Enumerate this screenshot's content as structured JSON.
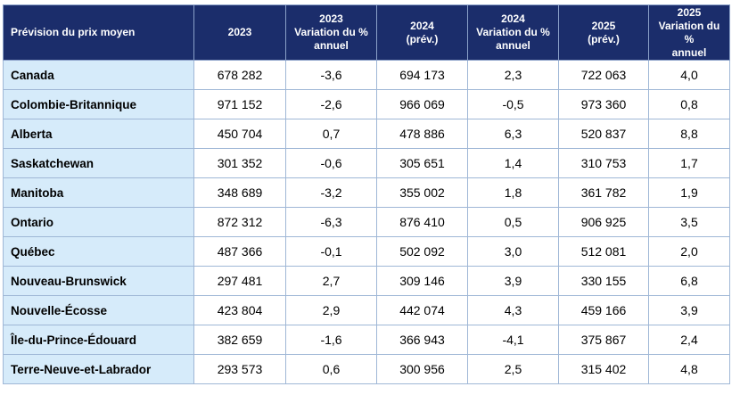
{
  "table": {
    "headers": [
      [
        "Prévision du prix moyen"
      ],
      [
        "2023"
      ],
      [
        "2023",
        "Variation du %",
        "annuel"
      ],
      [
        "2024",
        "(prév.)"
      ],
      [
        "2024",
        "Variation du %",
        "annuel"
      ],
      [
        "2025",
        "(prév.)"
      ],
      [
        "2025",
        "Variation du %",
        "annuel"
      ]
    ],
    "rows": [
      [
        "Canada",
        "678 282",
        "-3,6",
        "694 173",
        "2,3",
        "722 063",
        "4,0"
      ],
      [
        "Colombie-Britannique",
        "971 152",
        "-2,6",
        "966 069",
        "-0,5",
        "973 360",
        "0,8"
      ],
      [
        "Alberta",
        "450 704",
        "0,7",
        "478 886",
        "6,3",
        "520 837",
        "8,8"
      ],
      [
        "Saskatchewan",
        "301 352",
        "-0,6",
        "305 651",
        "1,4",
        "310 753",
        "1,7"
      ],
      [
        "Manitoba",
        "348 689",
        "-3,2",
        "355 002",
        "1,8",
        "361 782",
        "1,9"
      ],
      [
        "Ontario",
        "872 312",
        "-6,3",
        "876 410",
        "0,5",
        "906 925",
        "3,5"
      ],
      [
        "Québec",
        "487 366",
        "-0,1",
        "502 092",
        "3,0",
        "512 081",
        "2,0"
      ],
      [
        "Nouveau-Brunswick",
        "297 481",
        "2,7",
        "309 146",
        "3,9",
        "330 155",
        "6,8"
      ],
      [
        "Nouvelle-Écosse",
        "423 804",
        "2,9",
        "442 074",
        "4,3",
        "459 166",
        "3,9"
      ],
      [
        "Île-du-Prince-Édouard",
        "382 659",
        "-1,6",
        "366 943",
        "-4,1",
        "375 867",
        "2,4"
      ],
      [
        "Terre-Neuve-et-Labrador",
        "293 573",
        "0,6",
        "300 956",
        "2,5",
        "315 402",
        "4,8"
      ]
    ]
  },
  "colors": {
    "header_bg": "#1b2d6b",
    "header_text": "#ffffff",
    "name_cell_bg": "#d6ebfa",
    "border": "#9fb7d6"
  }
}
